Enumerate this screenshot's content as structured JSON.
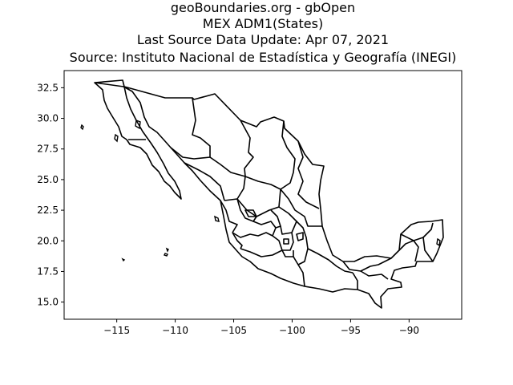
{
  "title": {
    "line1": "geoBoundaries.org - gbOpen",
    "line2": "MEX ADM1(States)",
    "line3": "Last Source Data Update: Apr 07, 2021",
    "line4": "Source: Instituto Nacional de Estadística y Geografía (INEGI)"
  },
  "chart_data": {
    "type": "map",
    "xlim": [
      -119.5,
      -85.5
    ],
    "ylim": [
      13.6,
      33.9
    ],
    "x_ticks": [
      -115,
      -110,
      -105,
      -100,
      -95,
      -90
    ],
    "x_tick_labels": [
      "−115",
      "−110",
      "−105",
      "−100",
      "−95",
      "−90"
    ],
    "y_ticks": [
      15.0,
      17.5,
      20.0,
      22.5,
      25.0,
      27.5,
      30.0,
      32.5
    ],
    "y_tick_labels": [
      "15.0",
      "17.5",
      "20.0",
      "22.5",
      "25.0",
      "27.5",
      "30.0",
      "32.5"
    ],
    "grid": false,
    "line_color": "#000000",
    "fill_color": "#ffffff"
  }
}
